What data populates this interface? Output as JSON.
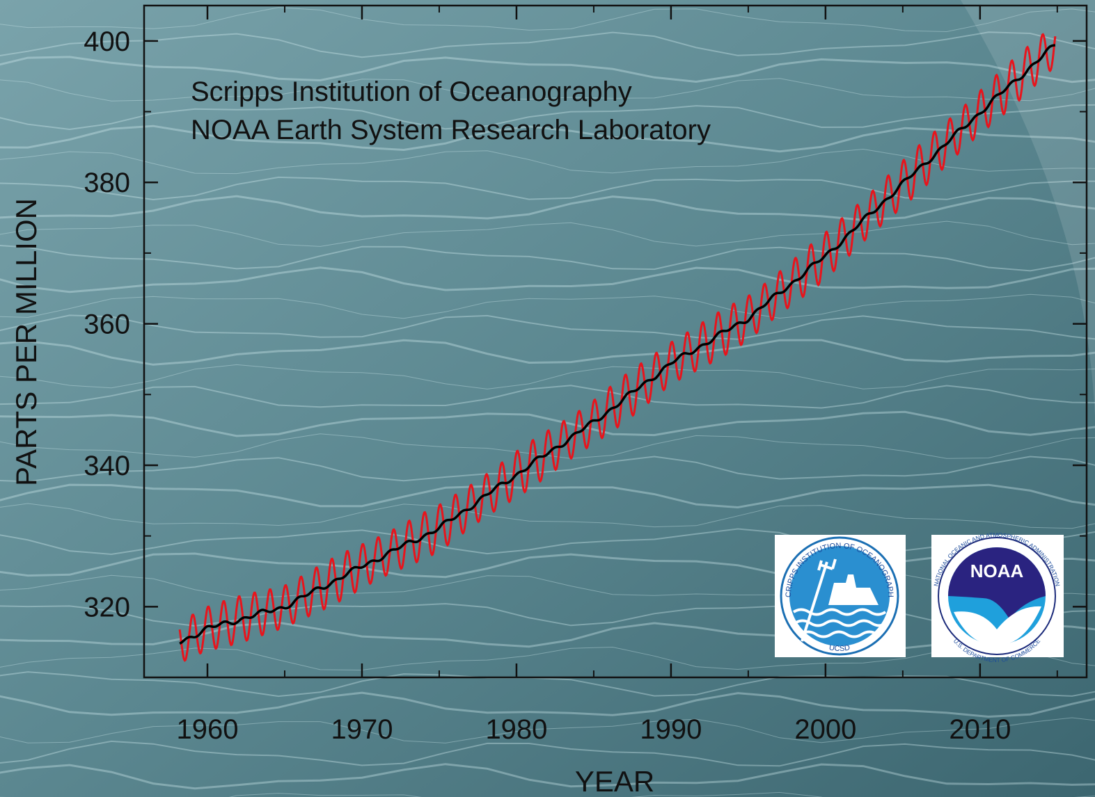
{
  "chart_data": {
    "type": "line",
    "xlabel": "YEAR",
    "ylabel": "PARTS PER MILLION",
    "xlim": [
      1955.9,
      2016.9
    ],
    "ylim": [
      310,
      405
    ],
    "x_ticks": [
      1960,
      1970,
      1980,
      1990,
      2000,
      2010
    ],
    "y_ticks": [
      320,
      340,
      360,
      380,
      400
    ],
    "annotations": [
      "Scripps Institution of Oceanography",
      "NOAA Earth System Research Laboratory"
    ],
    "series": [
      {
        "color": "#e8141c",
        "description_points": [
          {
            "x": 1958.2,
            "y": 315.7
          },
          {
            "x": 1960,
            "y": 316.9
          },
          {
            "x": 1965,
            "y": 320.0
          },
          {
            "x": 1970,
            "y": 325.7
          },
          {
            "x": 1975,
            "y": 331.1
          },
          {
            "x": 1980,
            "y": 338.7
          },
          {
            "x": 1985,
            "y": 346.1
          },
          {
            "x": 1990,
            "y": 354.4
          },
          {
            "x": 1995,
            "y": 360.8
          },
          {
            "x": 2000,
            "y": 369.6
          },
          {
            "x": 2005,
            "y": 379.8
          },
          {
            "x": 2010,
            "y": 389.9
          },
          {
            "x": 2014.9,
            "y": 399.5
          }
        ],
        "seasonal_amplitude_ppm": 3.3
      },
      {
        "color": "#000000",
        "points": [
          {
            "x": 1958.2,
            "y": 315.0
          },
          {
            "x": 1960,
            "y": 316.9
          },
          {
            "x": 1965,
            "y": 320.0
          },
          {
            "x": 1970,
            "y": 325.7
          },
          {
            "x": 1975,
            "y": 331.1
          },
          {
            "x": 1980,
            "y": 338.7
          },
          {
            "x": 1985,
            "y": 346.1
          },
          {
            "x": 1990,
            "y": 354.4
          },
          {
            "x": 1995,
            "y": 360.8
          },
          {
            "x": 2000,
            "y": 369.6
          },
          {
            "x": 2005,
            "y": 379.8
          },
          {
            "x": 2010,
            "y": 389.9
          },
          {
            "x": 2014.9,
            "y": 399.5
          }
        ]
      }
    ]
  },
  "logos": {
    "scripps": {
      "top_text": "SCRIPPS INSTITUTION OF OCEANOGRAPHY",
      "bottom_text": "UCSD"
    },
    "noaa": {
      "center_text": "NOAA",
      "top_text": "NATIONAL OCEANIC AND ATMOSPHERIC ADMINISTRATION",
      "bottom_text": "U.S. DEPARTMENT OF COMMERCE"
    }
  },
  "colors": {
    "seasonal_line": "#e8141c",
    "trend_line": "#000000",
    "axis": "#111111"
  }
}
